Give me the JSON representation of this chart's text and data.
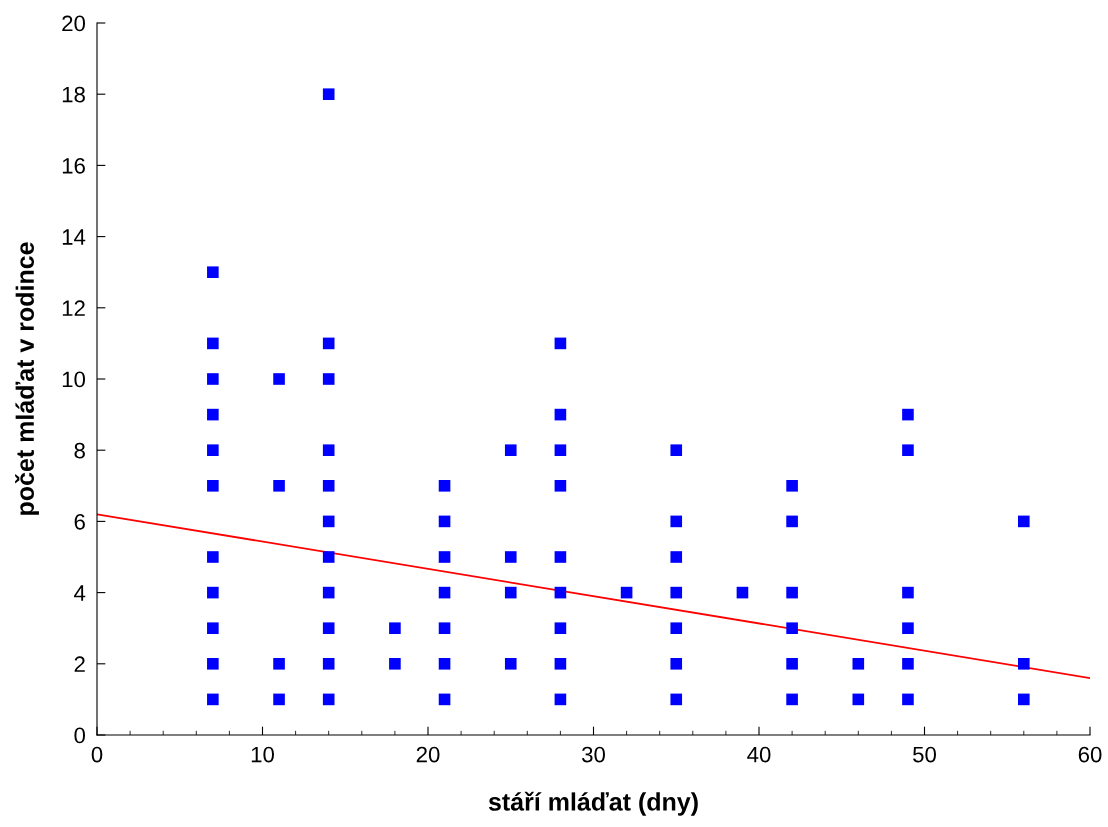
{
  "chart_data": {
    "type": "scatter",
    "xlabel": "stáří mláďat (dny)",
    "ylabel": "počet mláďat v rodince",
    "xlim": [
      0,
      60
    ],
    "xticks": [
      0,
      10,
      20,
      30,
      40,
      50,
      60
    ],
    "ylim": [
      0,
      20
    ],
    "yticks": [
      0,
      2,
      4,
      6,
      8,
      10,
      12,
      14,
      16,
      18,
      20
    ],
    "grid": false,
    "marker": "square",
    "series": [
      {
        "color": "#0000ff",
        "x": [
          7,
          7,
          7,
          7,
          7,
          7,
          7,
          7,
          7,
          7,
          7,
          11,
          11,
          11,
          11,
          14,
          14,
          14,
          14,
          14,
          14,
          14,
          14,
          14,
          14,
          14,
          18,
          18,
          21,
          21,
          21,
          21,
          21,
          21,
          21,
          25,
          25,
          25,
          25,
          28,
          28,
          28,
          28,
          28,
          28,
          28,
          28,
          28,
          32,
          35,
          35,
          35,
          35,
          35,
          35,
          35,
          39,
          42,
          42,
          42,
          42,
          42,
          42,
          46,
          46,
          49,
          49,
          49,
          49,
          49,
          49,
          56,
          56,
          56
        ],
        "values": [
          13,
          11,
          10,
          9,
          8,
          7,
          5,
          4,
          3,
          2,
          1,
          10,
          7,
          2,
          1,
          18,
          11,
          10,
          8,
          7,
          6,
          5,
          4,
          3,
          2,
          1,
          3,
          2,
          7,
          6,
          5,
          4,
          3,
          2,
          1,
          8,
          5,
          4,
          2,
          11,
          9,
          8,
          7,
          5,
          4,
          3,
          2,
          1,
          4,
          8,
          6,
          5,
          4,
          3,
          2,
          1,
          4,
          7,
          6,
          4,
          3,
          2,
          1,
          2,
          1,
          9,
          8,
          4,
          3,
          2,
          1,
          6,
          2,
          1
        ]
      },
      {
        "type": "line",
        "color": "#ff0000",
        "marker": "none",
        "line_style": "solid",
        "x": [
          0,
          60
        ],
        "values": [
          6.2,
          1.6
        ]
      }
    ]
  }
}
